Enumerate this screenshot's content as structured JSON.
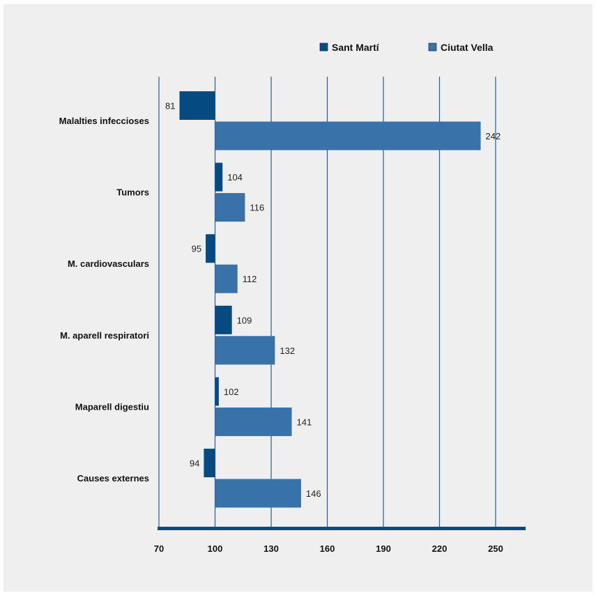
{
  "chart_data": {
    "type": "bar",
    "orientation": "horizontal",
    "categories": [
      "Malalties infeccioses",
      "Tumors",
      "M. cardiovasculars",
      "M. aparell respiratori",
      "Maparell digestiu",
      "Causes externes"
    ],
    "series": [
      {
        "name": "Sant Martí",
        "values": [
          81,
          104,
          95,
          109,
          102,
          94
        ],
        "color": "#064a82"
      },
      {
        "name": "Ciutat Vella",
        "values": [
          242,
          116,
          112,
          132,
          141,
          146
        ],
        "color": "#3872a8"
      }
    ],
    "baseline": 100,
    "xticks": [
      "70",
      "100",
      "130",
      "160",
      "190",
      "220",
      "250"
    ],
    "xlim": [
      70,
      265
    ],
    "grid": "vertical",
    "legend_position": "top-right",
    "colors": {
      "grid": "#1f5e96",
      "axis": "#064a82"
    }
  }
}
